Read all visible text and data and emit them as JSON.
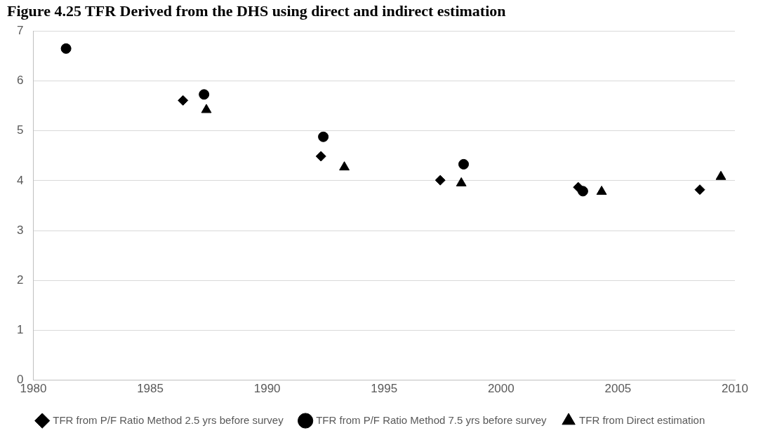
{
  "chart_data": {
    "type": "scatter",
    "title": "Figure 4.25 TFR Derived from the DHS using direct and indirect estimation",
    "series": [
      {
        "name": "TFR from P/F Ratio Method 2.5 yrs before survey",
        "color": "#000000",
        "marker": "diamond",
        "x": [
          1986.4,
          1992.3,
          1997.4,
          2003.3,
          2008.5
        ],
        "values": [
          5.61,
          4.49,
          4.01,
          3.87,
          3.82
        ]
      },
      {
        "name": "TFR from P/F Ratio Method 7.5 yrs before survey",
        "color": "#000000",
        "marker": "circle",
        "x": [
          1981.4,
          1987.3,
          1992.4,
          1998.4,
          2003.5
        ],
        "values": [
          6.65,
          5.73,
          4.88,
          4.33,
          3.79
        ]
      },
      {
        "name": "TFR from Direct estimation",
        "color": "#000000",
        "marker": "triangle",
        "x": [
          1987.4,
          1993.3,
          1998.3,
          2004.3,
          2009.4
        ],
        "values": [
          5.42,
          4.27,
          3.95,
          3.78,
          4.08
        ]
      }
    ],
    "xlim": [
      1980,
      2010
    ],
    "xticks": [
      1980,
      1985,
      1990,
      1995,
      2000,
      2005,
      2010
    ],
    "ylim": [
      0,
      7
    ],
    "yticks": [
      0,
      1,
      2,
      3,
      4,
      5,
      6,
      7
    ],
    "grid": "y",
    "legend": "bottom"
  }
}
